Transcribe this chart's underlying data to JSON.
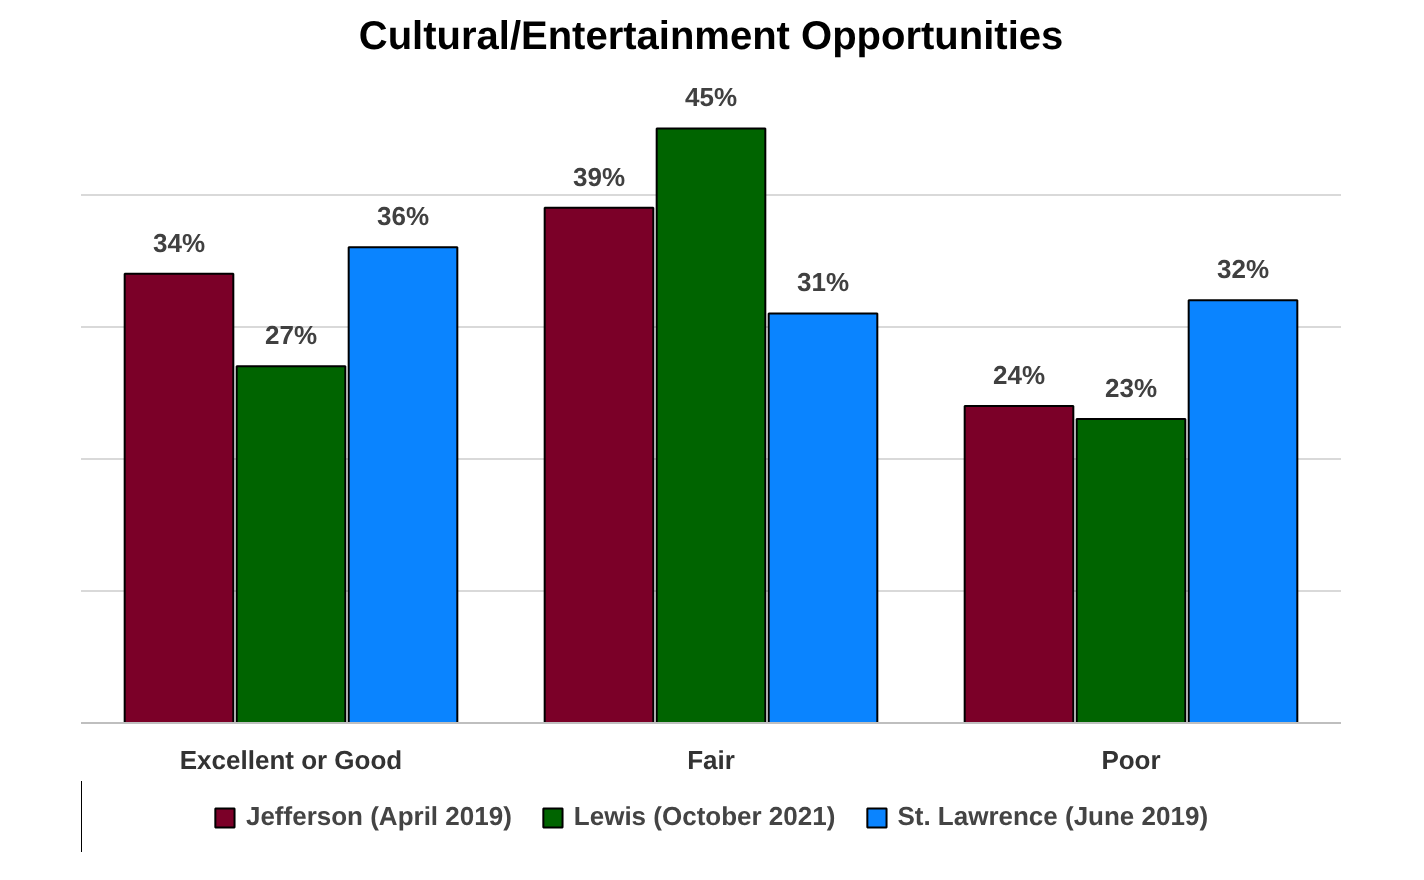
{
  "chart_data": {
    "type": "bar",
    "title": "Cultural/Entertainment Opportunities",
    "categories": [
      "Excellent or Good",
      "Fair",
      "Poor"
    ],
    "series": [
      {
        "name": "Jefferson (April 2019)",
        "color": "#7b0028",
        "values": [
          34,
          39,
          24
        ],
        "value_labels": [
          "34%",
          "39%",
          "24%"
        ]
      },
      {
        "name": "Lewis (October 2021)",
        "color": "#006400",
        "values": [
          27,
          45,
          23
        ],
        "value_labels": [
          "27%",
          "45%",
          "23%"
        ]
      },
      {
        "name": "St. Lawrence (June 2019)",
        "color": "#0a84ff",
        "values": [
          36,
          31,
          32
        ],
        "value_labels": [
          "36%",
          "31%",
          "32%"
        ]
      }
    ],
    "tick_labels": "x",
    "grid": "y",
    "legend": "bottom"
  }
}
